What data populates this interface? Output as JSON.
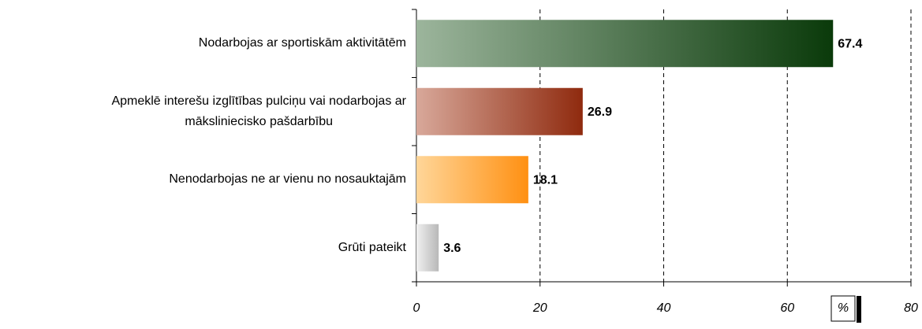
{
  "chart_data": {
    "type": "hbar",
    "categories": [
      "Nodarbojas ar sportiskām aktivitātēm",
      "Apmeklē interešu izglītības pulciņu vai nodarbojas ar\nmākslinieciskо pašdarbību",
      "Nenodarbojas ne ar vienu no nosauktajām",
      "Grūti pateikt"
    ],
    "values": [
      67.4,
      26.9,
      18.1,
      3.6
    ],
    "gradients": [
      [
        "#9cb59c",
        "#0a3a0a"
      ],
      [
        "#d8a89a",
        "#8f2a0e"
      ],
      [
        "#ffd699",
        "#ff9012"
      ],
      [
        "#f0f0f0",
        "#b8b8b8"
      ]
    ],
    "xlim": [
      0,
      80
    ],
    "xticks": [
      0,
      20,
      40,
      60,
      80
    ],
    "x_label": "%",
    "grid": true
  }
}
